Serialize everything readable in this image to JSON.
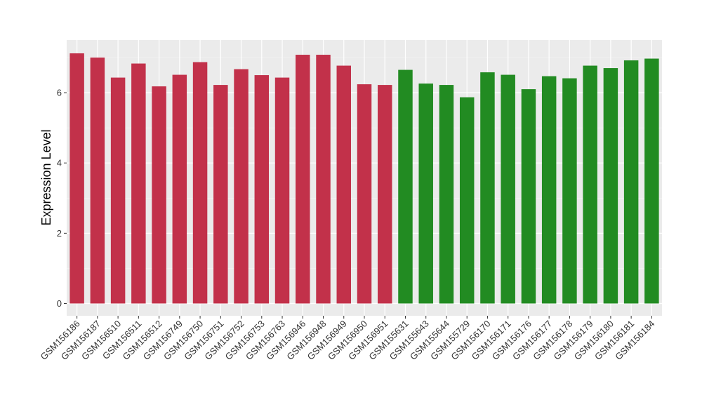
{
  "chart_data": {
    "type": "bar",
    "ylabel": "Expression Level",
    "xlabel": "",
    "ylim": [
      -0.35,
      7.5
    ],
    "yticks": [
      0,
      2,
      4,
      6
    ],
    "grid": true,
    "background": "#EBEBEB",
    "categories": [
      "GSM156186",
      "GSM156187",
      "GSM156510",
      "GSM156511",
      "GSM156512",
      "GSM156749",
      "GSM156750",
      "GSM156751",
      "GSM156752",
      "GSM156753",
      "GSM156763",
      "GSM156946",
      "GSM156948",
      "GSM156949",
      "GSM156950",
      "GSM156951",
      "GSM155631",
      "GSM155643",
      "GSM155644",
      "GSM155729",
      "GSM156170",
      "GSM156171",
      "GSM156176",
      "GSM156177",
      "GSM156178",
      "GSM156179",
      "GSM156180",
      "GSM156181",
      "GSM156184"
    ],
    "values": [
      7.12,
      7.0,
      6.43,
      6.83,
      6.18,
      6.51,
      6.87,
      6.22,
      6.67,
      6.5,
      6.43,
      7.08,
      7.08,
      6.77,
      6.24,
      6.22,
      6.65,
      6.26,
      6.22,
      5.87,
      6.58,
      6.51,
      6.1,
      6.47,
      6.41,
      6.77,
      6.7,
      6.92,
      6.97
    ],
    "bar_colors": [
      "#C2314A",
      "#C2314A",
      "#C2314A",
      "#C2314A",
      "#C2314A",
      "#C2314A",
      "#C2314A",
      "#C2314A",
      "#C2314A",
      "#C2314A",
      "#C2314A",
      "#C2314A",
      "#C2314A",
      "#C2314A",
      "#C2314A",
      "#C2314A",
      "#228B22",
      "#228B22",
      "#228B22",
      "#228B22",
      "#228B22",
      "#228B22",
      "#228B22",
      "#228B22",
      "#228B22",
      "#228B22",
      "#228B22",
      "#228B22",
      "#228B22"
    ]
  }
}
